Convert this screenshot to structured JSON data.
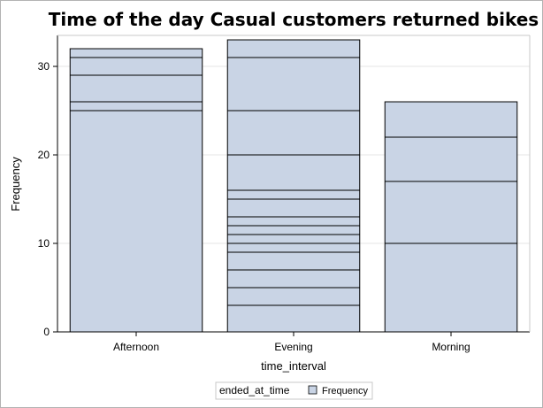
{
  "chart_data": {
    "type": "bar",
    "title": "Time of the day Casual customers returned bikes",
    "xlabel": "time_interval",
    "ylabel": "Frequency",
    "categories": [
      "Afternoon",
      "Evening",
      "Morning"
    ],
    "values": [
      32,
      33,
      26
    ],
    "segment_boundaries": [
      [
        25,
        26,
        29,
        31
      ],
      [
        3,
        5,
        7,
        9,
        10,
        11,
        12,
        13,
        15,
        16,
        20,
        25,
        31
      ],
      [
        10,
        17,
        22
      ]
    ],
    "ylim": [
      0,
      33
    ],
    "yticks": [
      0,
      10,
      20,
      30
    ],
    "grid": true,
    "legend": {
      "position": "bottom-center",
      "title": "ended_at_time",
      "entries": [
        "Frequency"
      ]
    },
    "colors": {
      "bar_fill": "#c9d4e5",
      "bar_edge": "#000000",
      "grid": "#e6e6e6",
      "axis": "#000000"
    }
  }
}
